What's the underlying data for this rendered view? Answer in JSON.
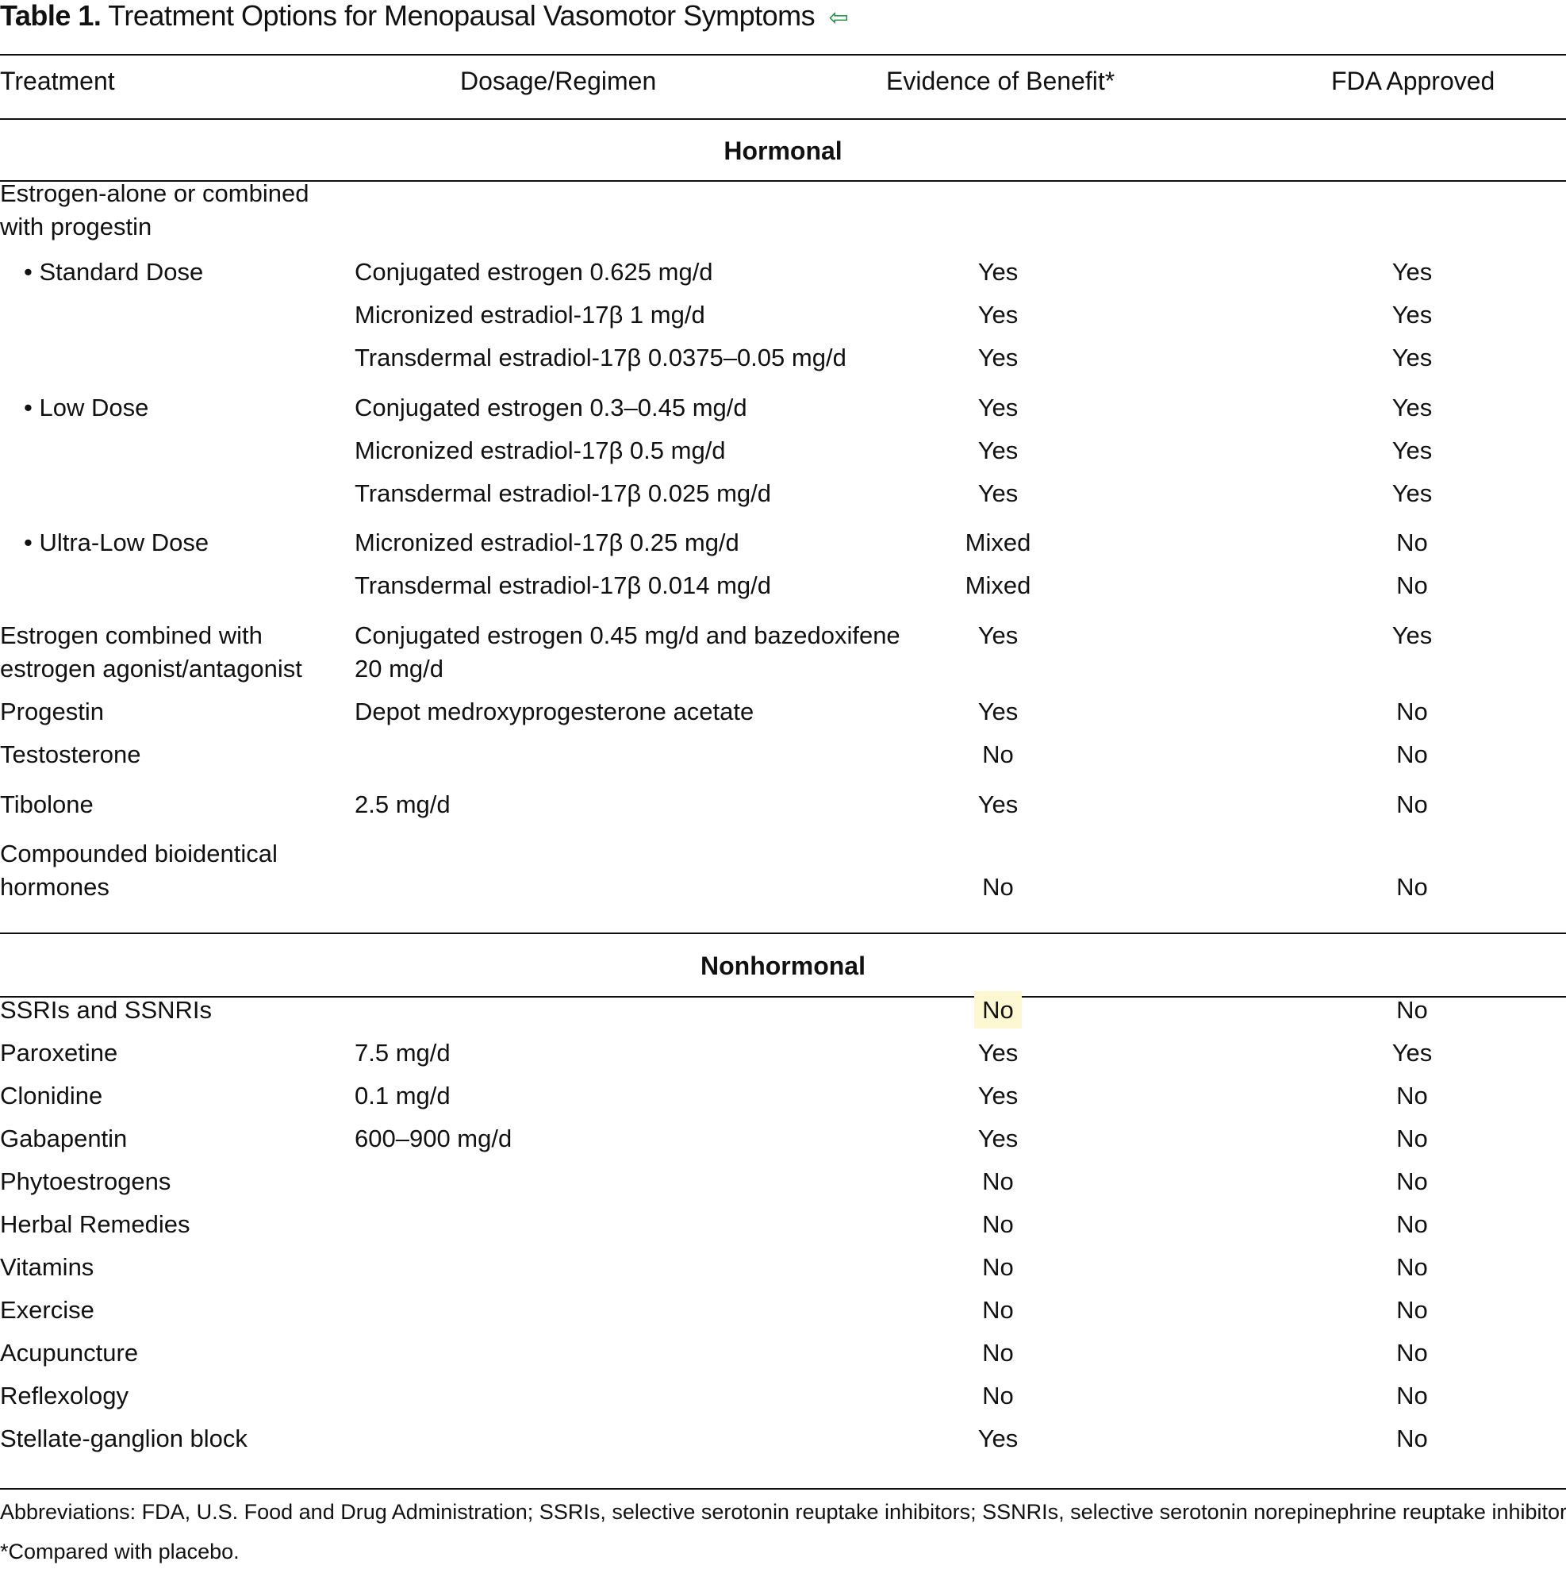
{
  "title": {
    "label": "Table 1.",
    "text": "Treatment Options for Menopausal Vasomotor Symptoms",
    "icon": "back-arrow-icon",
    "icon_color": "#1a8f3a"
  },
  "headers": [
    "Treatment",
    "Dosage/Regimen",
    "Evidence of Benefit*",
    "FDA Approved"
  ],
  "sections": [
    {
      "label": "Hormonal",
      "rows": [
        {
          "treatment": "Estrogen-alone or combined\nwith progestin",
          "dosage": "",
          "evidence": "",
          "fda": ""
        },
        {
          "treatment": "• Standard Dose",
          "dosage": "Conjugated estrogen 0.625 mg/d",
          "evidence": "Yes",
          "fda": "Yes"
        },
        {
          "treatment": "",
          "dosage": "Micronized estradiol-17β 1 mg/d",
          "evidence": "Yes",
          "fda": "Yes"
        },
        {
          "treatment": "",
          "dosage": "Transdermal estradiol-17β 0.0375–0.05 mg/d",
          "evidence": "Yes",
          "fda": "Yes"
        },
        {
          "treatment": "• Low Dose",
          "dosage": "Conjugated estrogen 0.3–0.45 mg/d",
          "evidence": "Yes",
          "fda": "Yes"
        },
        {
          "treatment": "",
          "dosage": "Micronized estradiol-17β 0.5 mg/d",
          "evidence": "Yes",
          "fda": "Yes"
        },
        {
          "treatment": "",
          "dosage": "Transdermal estradiol-17β 0.025 mg/d",
          "evidence": "Yes",
          "fda": "Yes"
        },
        {
          "treatment": "• Ultra-Low Dose",
          "dosage": "Micronized estradiol-17β 0.25 mg/d",
          "evidence": "Mixed",
          "fda": "No"
        },
        {
          "treatment": "",
          "dosage": "Transdermal estradiol-17β 0.014 mg/d",
          "evidence": "Mixed",
          "fda": "No"
        },
        {
          "treatment": "Estrogen combined with\nestrogen agonist/antagonist",
          "dosage": "Conjugated estrogen 0.45 mg/d and bazedoxifene\n20 mg/d",
          "evidence": "Yes",
          "fda": "Yes"
        },
        {
          "treatment": "Progestin",
          "dosage": "Depot medroxyprogesterone acetate",
          "evidence": "Yes",
          "fda": "No"
        },
        {
          "treatment": "Testosterone",
          "dosage": "",
          "evidence": "No",
          "fda": "No"
        },
        {
          "treatment": "Tibolone",
          "dosage": "2.5 mg/d",
          "evidence": "Yes",
          "fda": "No"
        },
        {
          "treatment": "Compounded bioidentical\nhormones",
          "dosage": "",
          "evidence": "No",
          "fda": "No"
        }
      ]
    },
    {
      "label": "Nonhormonal",
      "rows": [
        {
          "treatment": "SSRIs and SSNRIs",
          "dosage": "",
          "evidence": "No",
          "fda": "No",
          "evidence_highlighted": true
        },
        {
          "treatment": "Paroxetine",
          "dosage": "7.5 mg/d",
          "evidence": "Yes",
          "fda": "Yes"
        },
        {
          "treatment": "Clonidine",
          "dosage": "0.1 mg/d",
          "evidence": "Yes",
          "fda": "No"
        },
        {
          "treatment": "Gabapentin",
          "dosage": "600–900 mg/d",
          "evidence": "Yes",
          "fda": "No"
        },
        {
          "treatment": "Phytoestrogens",
          "dosage": "",
          "evidence": "No",
          "fda": "No"
        },
        {
          "treatment": "Herbal Remedies",
          "dosage": "",
          "evidence": "No",
          "fda": "No"
        },
        {
          "treatment": "Vitamins",
          "dosage": "",
          "evidence": "No",
          "fda": "No"
        },
        {
          "treatment": "Exercise",
          "dosage": "",
          "evidence": "No",
          "fda": "No"
        },
        {
          "treatment": "Acupuncture",
          "dosage": "",
          "evidence": "No",
          "fda": "No"
        },
        {
          "treatment": "Reflexology",
          "dosage": "",
          "evidence": "No",
          "fda": "No"
        },
        {
          "treatment": "Stellate-ganglion block",
          "dosage": "",
          "evidence": "Yes",
          "fda": "No"
        }
      ]
    }
  ],
  "footnotes": [
    "Abbreviations: FDA, U.S. Food and Drug Administration; SSRIs, selective serotonin reuptake inhibitors; SSNRIs, selective serotonin norepinephrine reuptake inhibitors.",
    "*Compared with placebo."
  ]
}
